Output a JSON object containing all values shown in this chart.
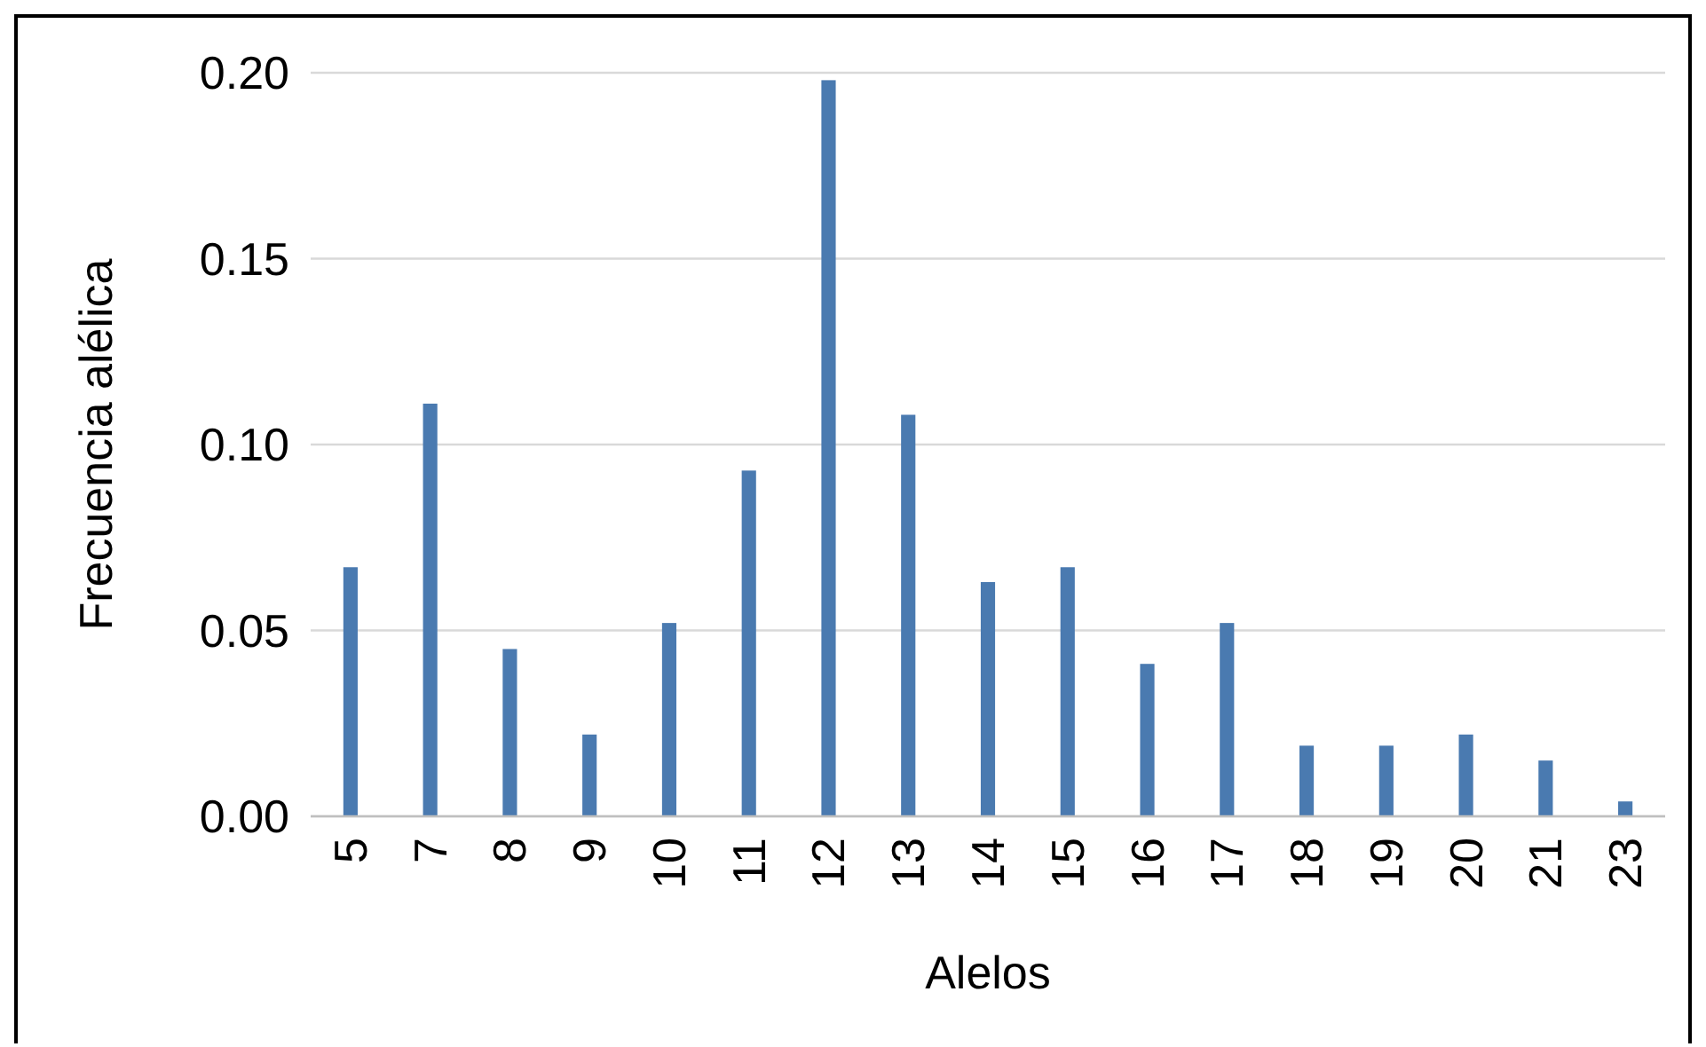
{
  "chart_data": {
    "type": "bar",
    "xlabel": "Alelos",
    "ylabel": "Frecuencia alélica",
    "categories": [
      "5",
      "7",
      "8",
      "9",
      "10",
      "11",
      "12",
      "13",
      "14",
      "15",
      "16",
      "17",
      "18",
      "19",
      "20",
      "21",
      "23"
    ],
    "values": [
      0.067,
      0.111,
      0.045,
      0.022,
      0.052,
      0.093,
      0.198,
      0.108,
      0.063,
      0.067,
      0.041,
      0.052,
      0.019,
      0.019,
      0.022,
      0.015,
      0.004
    ],
    "color": "#4a7ab0",
    "ylim": [
      0,
      0.2
    ],
    "yticks": [
      {
        "value": 0,
        "label": "0.00"
      },
      {
        "value": 0.05,
        "label": "0.05"
      },
      {
        "value": 0.1,
        "label": "0.10"
      },
      {
        "value": 0.15,
        "label": "0.15"
      },
      {
        "value": 0.2,
        "label": "0.20"
      }
    ],
    "grid": "y"
  }
}
